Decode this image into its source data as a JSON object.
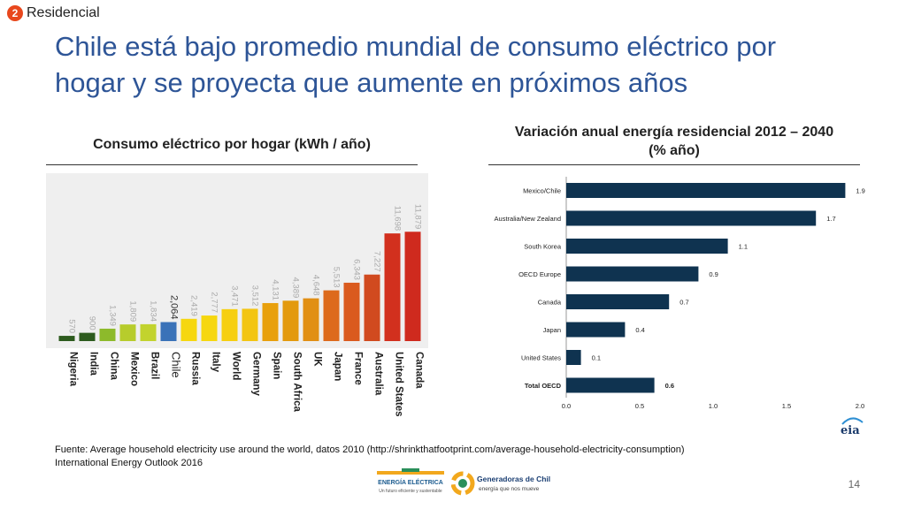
{
  "section": {
    "number": "2",
    "label": "Residencial"
  },
  "title": "Chile está bajo promedio mundial de consumo eléctrico por hogar y se proyecta que aumente en próximos años",
  "left_title": "Consumo eléctrico por hogar (kWh / año)",
  "right_title_line1": "Variación anual energía residencial 2012 – 2040",
  "right_title_line2": "(% año)",
  "footer_line1": "Fuente: Average household electricity use around the world, datos 2010 (http://shrinkthatfootprint.com/average-household-electricity-consumption)",
  "footer_line2": "International Energy Outlook 2016",
  "page_number": "14",
  "logos": {
    "eia": "eia",
    "energia_name": "ENERGÍA ELÉCTRICA",
    "energia_tagline": "Un futuro eficiente y sustentable",
    "generadoras_name": "Generadoras de Chile",
    "generadoras_tagline": "energía que nos mueve"
  },
  "chart_data": [
    {
      "type": "bar",
      "title": "Consumo eléctrico por hogar (kWh / año)",
      "categories": [
        "Nigeria",
        "India",
        "China",
        "Mexico",
        "Brazil",
        "Chile",
        "Russia",
        "Italy",
        "World",
        "Germany",
        "Spain",
        "South Africa",
        "UK",
        "Japan",
        "France",
        "Australia",
        "United States",
        "Canada"
      ],
      "values": [
        570,
        900,
        1349,
        1809,
        1834,
        2064,
        2419,
        2777,
        3471,
        3512,
        4131,
        4389,
        4648,
        5513,
        6343,
        7227,
        11698,
        11879
      ],
      "labels": [
        "570",
        "900",
        "1,349",
        "1,809",
        "1,834",
        "2,064",
        "2,419",
        "2,777",
        "3,471",
        "3,512",
        "4,131",
        "4,389",
        "4,648",
        "5,513",
        "6,343",
        "7,227",
        "11,698",
        "11,879"
      ],
      "colors": [
        "#2d5b1e",
        "#2d5b1e",
        "#8dba2b",
        "#b7cc2c",
        "#c2d32e",
        "#3a72b8",
        "#f6d70f",
        "#f6d70f",
        "#f6cf10",
        "#f3c512",
        "#e8a00c",
        "#e39a0d",
        "#e18f14",
        "#dd6a1c",
        "#da5a1e",
        "#d14a1f",
        "#d2301e",
        "#cf2a1e"
      ],
      "highlight": "Chile",
      "ylim": [
        0,
        12000
      ],
      "xlabel": "",
      "ylabel": ""
    },
    {
      "type": "bar",
      "orientation": "horizontal",
      "title": "Variación anual energía residencial 2012 – 2040 (% año)",
      "categories": [
        "Mexico/Chile",
        "Australia/New Zealand",
        "South Korea",
        "OECD Europe",
        "Canada",
        "Japan",
        "United States",
        "Total OECD"
      ],
      "values": [
        1.9,
        1.7,
        1.1,
        0.9,
        0.7,
        0.4,
        0.1,
        0.6
      ],
      "labels": [
        "1.9",
        "1.7",
        "1.1",
        "0.9",
        "0.7",
        "0.4",
        "0.1",
        "0.6"
      ],
      "bold_category": "Total OECD",
      "xlim": [
        0,
        2.0
      ],
      "xticks": [
        "0.0",
        "0.5",
        "1.0",
        "1.5",
        "2.0"
      ],
      "color": "#0f3350"
    }
  ]
}
